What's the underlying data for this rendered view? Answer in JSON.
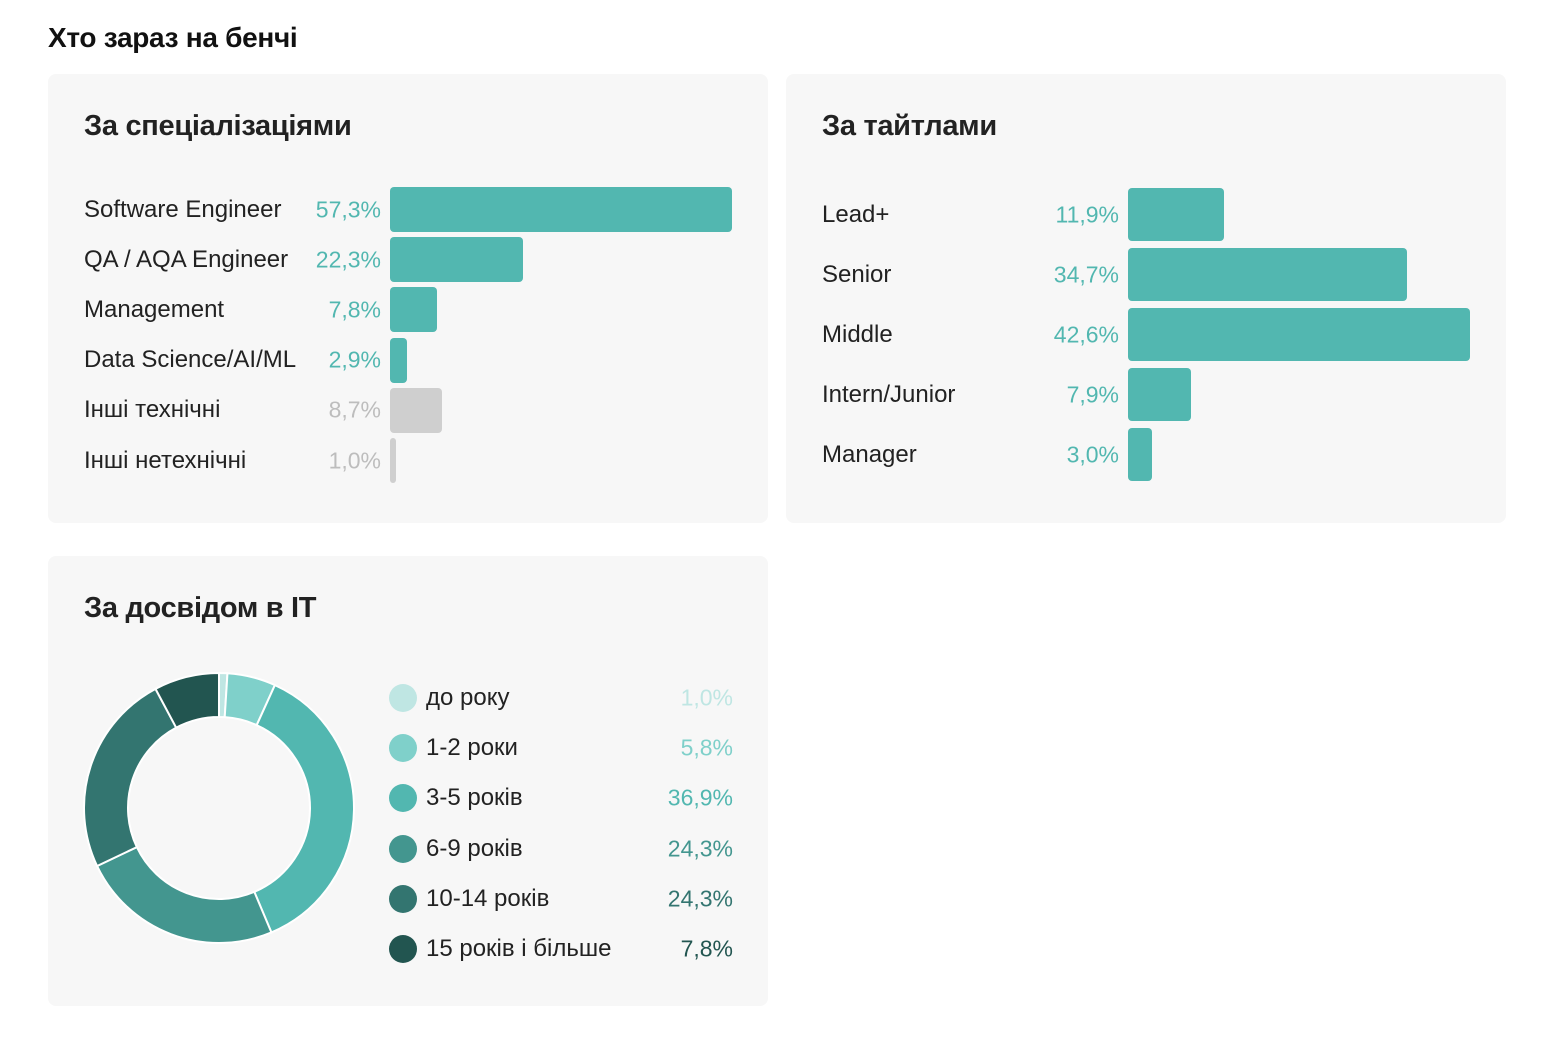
{
  "page_title": "Хто зараз на бенчі",
  "colors": {
    "teal": "#52b7b0",
    "gray": "#cfcfcf",
    "gray_text": "#bdbdbd"
  },
  "chart_data": [
    {
      "type": "bar",
      "orientation": "horizontal",
      "title": "За спеціалізаціями",
      "categories": [
        "Software Engineer",
        "QA / AQA Engineer",
        "Management",
        "Data Science/AI/ML",
        "Інші технічні",
        "Інші нетехнічні"
      ],
      "values": [
        57.3,
        22.3,
        7.8,
        2.9,
        8.7,
        1.0
      ],
      "value_labels": [
        "57,3%",
        "22,3%",
        "7,8%",
        "2,9%",
        "8,7%",
        "1,0%"
      ],
      "colors": [
        "#52b7b0",
        "#52b7b0",
        "#52b7b0",
        "#52b7b0",
        "#cfcfcf",
        "#cfcfcf"
      ],
      "label_colors": [
        "#52b7b0",
        "#52b7b0",
        "#52b7b0",
        "#52b7b0",
        "#bdbdbd",
        "#bdbdbd"
      ],
      "xlim": [
        0,
        57.3
      ]
    },
    {
      "type": "bar",
      "orientation": "horizontal",
      "title": "За тайтлами",
      "categories": [
        "Lead+",
        "Senior",
        "Middle",
        "Intern/Junior",
        "Manager"
      ],
      "values": [
        11.9,
        34.7,
        42.6,
        7.9,
        3.0
      ],
      "value_labels": [
        "11,9%",
        "34,7%",
        "42,6%",
        "7,9%",
        "3,0%"
      ],
      "colors": [
        "#52b7b0",
        "#52b7b0",
        "#52b7b0",
        "#52b7b0",
        "#52b7b0"
      ],
      "label_colors": [
        "#52b7b0",
        "#52b7b0",
        "#52b7b0",
        "#52b7b0",
        "#52b7b0"
      ],
      "xlim": [
        0,
        42.6
      ]
    },
    {
      "type": "pie",
      "style": "donut",
      "title": "За досвідом в IT",
      "categories": [
        "до року",
        "1-2 роки",
        "3-5 років",
        "6-9 років",
        "10-14 років",
        "15 років і більше"
      ],
      "values": [
        1.0,
        5.8,
        36.9,
        24.3,
        24.3,
        7.8
      ],
      "value_labels": [
        "1,0%",
        "5,8%",
        "36,9%",
        "24,3%",
        "24,3%",
        "7,8%"
      ],
      "colors": [
        "#bfe6e3",
        "#7fd0ca",
        "#52b7b0",
        "#43968f",
        "#337570",
        "#225550"
      ],
      "label_colors": [
        "#bfe6e3",
        "#7fd0ca",
        "#52b7b0",
        "#43968f",
        "#337570",
        "#225550"
      ],
      "legend": "right"
    }
  ]
}
